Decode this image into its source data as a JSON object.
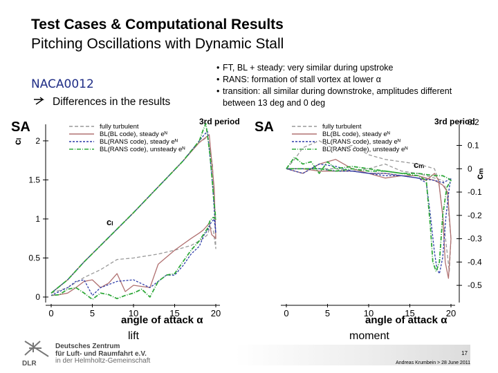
{
  "header": {
    "title": "Test Cases & Computational Results",
    "subtitle": "Pitching Oscillations with Dynamic Stall"
  },
  "left": {
    "airfoil": "NACA0012",
    "differences": "Differences in the results"
  },
  "bullets": [
    "FT, BL + steady: very similar during upstroke",
    "RANS: formation of stall vortex at lower α",
    "transition: all similar during downstroke, amplitudes different",
    "between 13 deg and 0 deg"
  ],
  "captions": {
    "lift": "lift",
    "moment": "moment"
  },
  "footer": {
    "org_lines": [
      "Deutsches Zentrum",
      "für Luft- und Raumfahrt e.V.",
      "in der Helmholtz-Gemeinschaft"
    ],
    "logo_text": "DLR",
    "page_number": "17",
    "author_date": "Andreas Krumbein > 28 June 2011"
  },
  "colors": {
    "fully_turbulent": "#999999",
    "bl_code_steady": "#b07070",
    "rans_steady": "#2b3aa8",
    "rans_unsteady": "#2fa83a",
    "title_blue": "#1f2d86"
  },
  "chart_data": [
    {
      "type": "line",
      "corner_label": "SA",
      "period_label": "3rd period",
      "inner_label": "cₗ",
      "xlabel": "angle of attack α",
      "ylabel": "cₗ",
      "xlim": [
        0,
        20
      ],
      "ylim": [
        0,
        2.3
      ],
      "xticks": [
        "0",
        "5",
        "10",
        "15",
        "20"
      ],
      "yticks": [
        {
          "v": 0,
          "t": "0"
        },
        {
          "v": 0.5,
          "t": "0.5"
        },
        {
          "v": 1,
          "t": "1"
        },
        {
          "v": 1.5,
          "t": "1.5"
        },
        {
          "v": 2,
          "t": "2"
        }
      ],
      "grid": false,
      "legend": "top",
      "series": [
        {
          "name": "fully turbulent",
          "color": "#999999",
          "dash": "5 3",
          "x": [
            0,
            2,
            4,
            6,
            8,
            10,
            12,
            14,
            16,
            18,
            19,
            19.6,
            19.9,
            20,
            19.7,
            19.3,
            19,
            18.5,
            18,
            17,
            15,
            13,
            10,
            8,
            6,
            4,
            2,
            0
          ],
          "y": [
            0.05,
            0.22,
            0.45,
            0.66,
            0.87,
            1.08,
            1.3,
            1.52,
            1.74,
            1.98,
            2.05,
            1.7,
            1.0,
            0.62,
            0.85,
            0.9,
            0.8,
            0.75,
            0.72,
            0.66,
            0.6,
            0.55,
            0.5,
            0.48,
            0.35,
            0.25,
            0.12,
            0.05
          ]
        },
        {
          "name": "BL(BL code), steady eᴺ",
          "color": "#b07070",
          "dash": "",
          "x": [
            0,
            2,
            4,
            6,
            8,
            10,
            12,
            14,
            16,
            18,
            19.2,
            19.8,
            20,
            19.5,
            19.2,
            19,
            18.5,
            18,
            17,
            15,
            13,
            12,
            10,
            9,
            8,
            7,
            6,
            5,
            4,
            3,
            2,
            1,
            0
          ],
          "y": [
            0.05,
            0.22,
            0.45,
            0.66,
            0.87,
            1.08,
            1.3,
            1.52,
            1.74,
            1.98,
            2.08,
            1.4,
            0.75,
            0.8,
            0.95,
            0.92,
            0.86,
            0.82,
            0.75,
            0.6,
            0.42,
            0.12,
            0.15,
            0.07,
            0.3,
            0.18,
            0.12,
            0.22,
            0.2,
            0.12,
            0.05,
            0.03,
            0.02
          ]
        },
        {
          "name": "BL(RANS code), steady eᴺ",
          "color": "#2b3aa8",
          "dash": "3 2",
          "x": [
            0,
            2,
            4,
            6,
            8,
            10,
            12,
            14,
            16,
            17,
            18,
            18.6,
            19,
            19.6,
            20,
            19.8,
            19.4,
            19,
            18.6,
            18,
            17,
            16,
            15,
            14,
            12,
            10,
            8,
            6,
            5,
            4,
            3,
            2,
            0
          ],
          "y": [
            0.05,
            0.22,
            0.45,
            0.66,
            0.87,
            1.08,
            1.3,
            1.52,
            1.74,
            1.87,
            2.0,
            2.08,
            2.12,
            1.45,
            0.82,
            1.0,
            0.95,
            0.85,
            0.8,
            0.65,
            0.55,
            0.4,
            0.28,
            0.28,
            0.12,
            0.22,
            0.2,
            0.12,
            0.02,
            0.22,
            0.2,
            0.12,
            0.02
          ]
        },
        {
          "name": "BL(RANS code), unsteady eᴺ",
          "color": "#2fa83a",
          "dash": "6 2 1 2",
          "x": [
            0,
            2,
            4,
            6,
            8,
            10,
            12,
            14,
            16,
            17,
            18,
            18.5,
            18.8,
            19.3,
            19.8,
            20,
            19.7,
            19.3,
            19,
            18.5,
            18,
            17,
            16,
            15,
            14,
            13,
            12,
            11,
            10,
            9,
            8,
            7,
            6,
            5,
            4,
            3,
            2,
            1,
            0
          ],
          "y": [
            0.05,
            0.22,
            0.45,
            0.66,
            0.87,
            1.08,
            1.3,
            1.52,
            1.74,
            1.87,
            2.0,
            2.15,
            2.22,
            1.82,
            1.2,
            1.0,
            1.02,
            0.98,
            0.88,
            0.8,
            0.72,
            0.6,
            0.45,
            0.3,
            0.28,
            0.2,
            0.0,
            0.1,
            0.05,
            0.02,
            -0.02,
            0.03,
            0.05,
            -0.03,
            0.05,
            0.12,
            0.1,
            0.03,
            0.02
          ]
        }
      ]
    },
    {
      "type": "line",
      "corner_label": "SA",
      "period_label": "3rd period",
      "inner_label": "cₘ",
      "xlabel": "angle of attack α",
      "ylabel": "cₘ",
      "xlim": [
        0,
        20
      ],
      "ylim": [
        -0.55,
        0.22
      ],
      "xticks": [
        "0",
        "5",
        "10",
        "15",
        "20"
      ],
      "yticks": [
        {
          "v": 0.2,
          "t": "0.2"
        },
        {
          "v": 0.1,
          "t": "0.1"
        },
        {
          "v": 0,
          "t": "0"
        },
        {
          "v": -0.1,
          "t": "-0.1"
        },
        {
          "v": -0.2,
          "t": "-0.2"
        },
        {
          "v": -0.3,
          "t": "-0.3"
        },
        {
          "v": -0.4,
          "t": "-0.4"
        },
        {
          "v": -0.5,
          "t": "-0.5"
        }
      ],
      "grid": false,
      "legend": "top",
      "series": [
        {
          "name": "fully turbulent",
          "color": "#999999",
          "dash": "5 3",
          "x": [
            0,
            1,
            2,
            4,
            6,
            8,
            10,
            12,
            14,
            16,
            18,
            18.5,
            19,
            19.4,
            19.8,
            20,
            19.5,
            19,
            18,
            16,
            14,
            12,
            10,
            8,
            6,
            4,
            2,
            0
          ],
          "y": [
            0.0,
            0.04,
            0.09,
            0.12,
            0.08,
            0.1,
            0.06,
            0.04,
            0.03,
            0.02,
            0.0,
            -0.05,
            -0.2,
            -0.32,
            -0.44,
            -0.3,
            -0.1,
            -0.05,
            -0.04,
            -0.02,
            -0.01,
            0.02,
            0.0,
            -0.01,
            0.0,
            0.0,
            0.0,
            0.0
          ]
        },
        {
          "name": "BL(BL code), steady eᴺ",
          "color": "#b07070",
          "dash": "",
          "x": [
            0,
            2,
            4,
            6,
            8,
            10,
            12,
            14,
            16,
            17,
            18,
            18.5,
            19,
            19.3,
            19.7,
            20,
            19.6,
            19,
            18,
            16,
            14,
            12,
            10,
            8,
            6,
            4,
            2,
            0
          ],
          "y": [
            0.0,
            -0.02,
            0.02,
            0.04,
            0.0,
            -0.02,
            -0.04,
            -0.03,
            -0.04,
            -0.05,
            -0.02,
            -0.05,
            -0.2,
            -0.4,
            -0.47,
            -0.3,
            -0.1,
            -0.07,
            -0.05,
            -0.03,
            -0.03,
            -0.02,
            -0.02,
            -0.01,
            -0.01,
            -0.01,
            0.0,
            0.0
          ]
        },
        {
          "name": "BL(RANS code), steady eᴺ",
          "color": "#2b3aa8",
          "dash": "3 2",
          "x": [
            0,
            2,
            4,
            6,
            8,
            10,
            12,
            14,
            16,
            17,
            17.5,
            18,
            18.3,
            18.6,
            19,
            19.4,
            19.8,
            20,
            19.6,
            19,
            18,
            16,
            14,
            12,
            10,
            8,
            6,
            4,
            2,
            0
          ],
          "y": [
            0.0,
            -0.02,
            0.02,
            0.01,
            -0.01,
            -0.02,
            -0.03,
            -0.03,
            -0.04,
            -0.06,
            -0.2,
            -0.36,
            -0.43,
            -0.45,
            -0.38,
            -0.2,
            -0.08,
            -0.04,
            -0.05,
            -0.06,
            -0.05,
            -0.04,
            -0.03,
            -0.02,
            -0.02,
            -0.01,
            -0.01,
            0.0,
            0.0,
            0.0
          ]
        },
        {
          "name": "BL(RANS code), unsteady eᴺ",
          "color": "#2fa83a",
          "dash": "6 2 1 2",
          "x": [
            0,
            1,
            2,
            3,
            4,
            5,
            6,
            8,
            10,
            12,
            14,
            16,
            17,
            17.5,
            17.8,
            18.2,
            18.6,
            19,
            19.5,
            20,
            19.6,
            19,
            18,
            16,
            14,
            12,
            10,
            8,
            6,
            4,
            2,
            0
          ],
          "y": [
            0.0,
            0.05,
            0.02,
            0.03,
            -0.02,
            0.03,
            0.0,
            0.01,
            0.0,
            -0.01,
            -0.02,
            -0.03,
            -0.05,
            -0.25,
            -0.4,
            -0.44,
            -0.4,
            -0.2,
            -0.08,
            -0.05,
            -0.04,
            -0.03,
            -0.03,
            -0.02,
            -0.02,
            -0.01,
            -0.01,
            0.0,
            -0.01,
            0.0,
            0.0,
            0.0
          ]
        }
      ]
    }
  ]
}
